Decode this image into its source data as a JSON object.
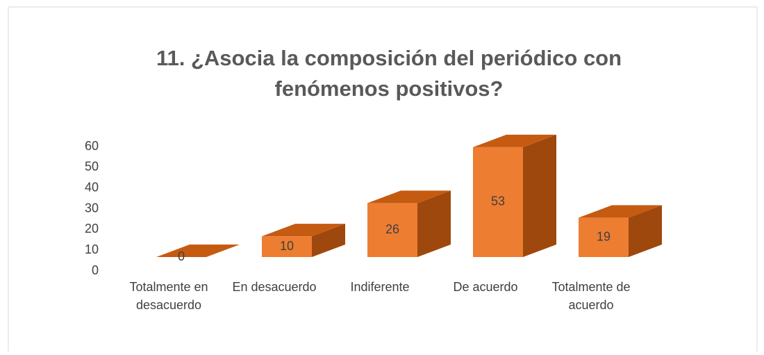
{
  "chart_data": {
    "type": "bar3d",
    "title": "11. ¿Asocia la composición del periódico con fenómenos positivos?",
    "categories": [
      "Totalmente en desacuerdo",
      "En desacuerdo",
      "Indiferente",
      "De acuerdo",
      "Totalmente de acuerdo"
    ],
    "values": [
      0,
      10,
      26,
      53,
      19
    ],
    "color": "#ed7d31",
    "ylim": [
      0,
      60
    ],
    "yticks": [
      0,
      10,
      20,
      30,
      40,
      50,
      60
    ],
    "grid": false
  }
}
